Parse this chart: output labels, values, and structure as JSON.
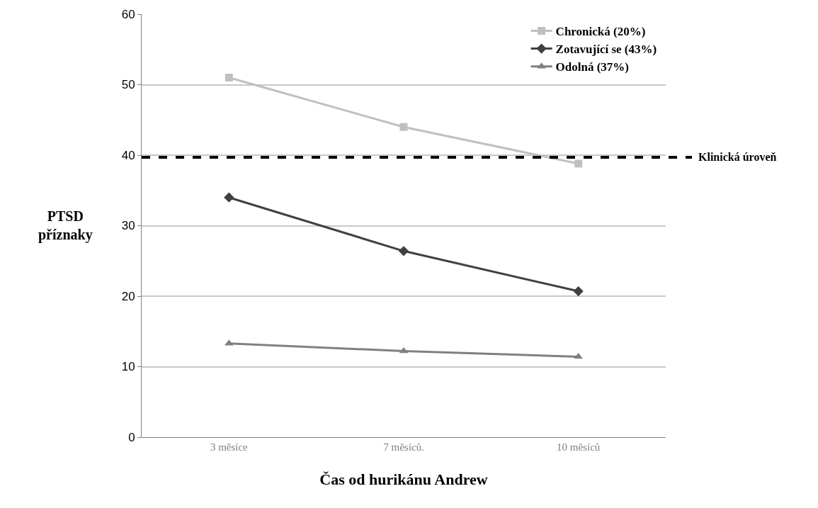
{
  "chart_data": {
    "type": "line",
    "xlabel": "Čas od hurikánu Andrew",
    "ylabel": "PTSD\npříznaky",
    "categories": [
      "3 měsíce",
      "7 měsíců.",
      "10 měsíců"
    ],
    "series": [
      {
        "name": "Chronická (20%)",
        "color": "#c0c0c0",
        "marker": "square",
        "values": [
          51,
          44,
          38.8
        ]
      },
      {
        "name": "Zotavující se (43%)",
        "color": "#404040",
        "marker": "diamond",
        "values": [
          34,
          26.4,
          20.7
        ]
      },
      {
        "name": "Odolná (37%)",
        "color": "#808080",
        "marker": "triangle",
        "values": [
          13.3,
          12.2,
          11.4
        ]
      }
    ],
    "ylim": [
      0,
      60
    ],
    "yticks": [
      0,
      10,
      20,
      30,
      40,
      50,
      60
    ],
    "grid": "y",
    "legend": "top right",
    "line_style": "solid",
    "ref_lines": [
      {
        "axis": "y",
        "value": 39.7,
        "label": "Klinická úroveň",
        "color": "#000000",
        "line_style": "dashed"
      }
    ]
  }
}
